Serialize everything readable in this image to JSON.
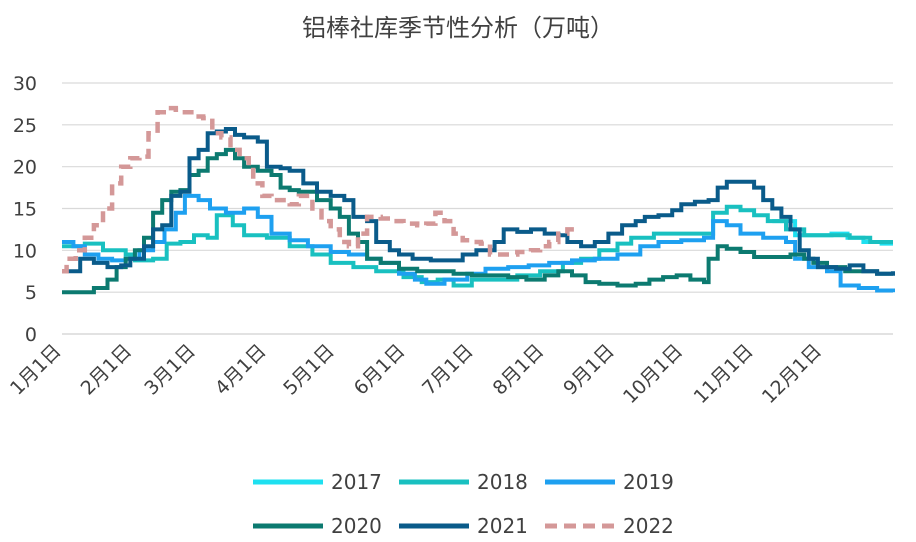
{
  "chart_data": {
    "type": "line",
    "title": "铝棒社库季节性分析（万吨）",
    "xlabel": "",
    "ylabel": "",
    "ylim": [
      0,
      30
    ],
    "yticks": [
      0,
      5,
      10,
      15,
      20,
      25,
      30
    ],
    "x_domain_days": [
      0,
      365
    ],
    "x_ticks": [
      {
        "label": "1月1日",
        "day": 0
      },
      {
        "label": "2月1日",
        "day": 31
      },
      {
        "label": "3月1日",
        "day": 59
      },
      {
        "label": "4月1日",
        "day": 90
      },
      {
        "label": "5月1日",
        "day": 120
      },
      {
        "label": "6月1日",
        "day": 151
      },
      {
        "label": "7月1日",
        "day": 181
      },
      {
        "label": "8月1日",
        "day": 212
      },
      {
        "label": "9月1日",
        "day": 243
      },
      {
        "label": "10月1日",
        "day": 273
      },
      {
        "label": "11月1日",
        "day": 304
      },
      {
        "label": "12月1日",
        "day": 334
      }
    ],
    "grid": "horizontal",
    "legend_position": "bottom",
    "series": [
      {
        "name": "2017",
        "color": "#1ee0f0",
        "dash": false,
        "points": [
          [
            312,
            13.5
          ],
          [
            318,
            13.5
          ],
          [
            322,
            11.8
          ],
          [
            330,
            11.8
          ],
          [
            338,
            12.0
          ],
          [
            345,
            11.5
          ],
          [
            352,
            11.0
          ],
          [
            360,
            10.8
          ],
          [
            365,
            10.8
          ]
        ]
      },
      {
        "name": "2018",
        "color": "#19c0c0",
        "dash": false,
        "points": [
          [
            0,
            10.5
          ],
          [
            10,
            10.8
          ],
          [
            18,
            10.0
          ],
          [
            28,
            9.5
          ],
          [
            32,
            8.8
          ],
          [
            40,
            9.0
          ],
          [
            46,
            10.8
          ],
          [
            52,
            11.0
          ],
          [
            58,
            11.8
          ],
          [
            64,
            11.5
          ],
          [
            68,
            14.2
          ],
          [
            75,
            13.0
          ],
          [
            80,
            11.8
          ],
          [
            90,
            11.5
          ],
          [
            100,
            10.5
          ],
          [
            110,
            9.5
          ],
          [
            118,
            8.5
          ],
          [
            128,
            8.0
          ],
          [
            138,
            7.5
          ],
          [
            150,
            6.8
          ],
          [
            158,
            6.2
          ],
          [
            165,
            6.5
          ],
          [
            172,
            5.8
          ],
          [
            180,
            6.5
          ],
          [
            190,
            6.5
          ],
          [
            200,
            7.0
          ],
          [
            210,
            7.5
          ],
          [
            220,
            8.5
          ],
          [
            228,
            9.0
          ],
          [
            236,
            10.0
          ],
          [
            244,
            10.8
          ],
          [
            250,
            11.5
          ],
          [
            260,
            12.0
          ],
          [
            270,
            12.0
          ],
          [
            280,
            12.0
          ],
          [
            286,
            14.5
          ],
          [
            292,
            15.2
          ],
          [
            298,
            14.8
          ],
          [
            304,
            14.2
          ],
          [
            310,
            13.5
          ],
          [
            318,
            12.5
          ],
          [
            326,
            11.8
          ],
          [
            336,
            11.8
          ],
          [
            346,
            11.5
          ],
          [
            355,
            11.0
          ],
          [
            365,
            11.0
          ]
        ]
      },
      {
        "name": "2019",
        "color": "#1ea0f0",
        "dash": false,
        "points": [
          [
            0,
            11.0
          ],
          [
            5,
            10.5
          ],
          [
            10,
            9.5
          ],
          [
            16,
            9.0
          ],
          [
            22,
            8.8
          ],
          [
            28,
            9.0
          ],
          [
            34,
            10.0
          ],
          [
            40,
            11.0
          ],
          [
            45,
            12.5
          ],
          [
            50,
            14.5
          ],
          [
            54,
            16.5
          ],
          [
            60,
            16.0
          ],
          [
            65,
            15.0
          ],
          [
            72,
            14.5
          ],
          [
            80,
            15.0
          ],
          [
            86,
            14.0
          ],
          [
            92,
            12.0
          ],
          [
            100,
            11.2
          ],
          [
            108,
            10.5
          ],
          [
            118,
            9.8
          ],
          [
            126,
            9.5
          ],
          [
            134,
            9.0
          ],
          [
            140,
            8.5
          ],
          [
            148,
            7.2
          ],
          [
            155,
            6.5
          ],
          [
            160,
            6.0
          ],
          [
            168,
            6.5
          ],
          [
            178,
            7.2
          ],
          [
            186,
            7.8
          ],
          [
            196,
            8.0
          ],
          [
            205,
            8.2
          ],
          [
            214,
            8.5
          ],
          [
            224,
            8.8
          ],
          [
            234,
            9.0
          ],
          [
            244,
            9.5
          ],
          [
            254,
            10.5
          ],
          [
            262,
            11.0
          ],
          [
            272,
            11.2
          ],
          [
            282,
            11.5
          ],
          [
            286,
            13.5
          ],
          [
            292,
            13.0
          ],
          [
            298,
            12.0
          ],
          [
            308,
            11.5
          ],
          [
            318,
            11.0
          ],
          [
            322,
            9.0
          ],
          [
            328,
            8.0
          ],
          [
            336,
            7.5
          ],
          [
            342,
            5.8
          ],
          [
            350,
            5.5
          ],
          [
            358,
            5.2
          ],
          [
            365,
            5.0
          ]
        ]
      },
      {
        "name": "2020",
        "color": "#0c7a70",
        "dash": false,
        "points": [
          [
            0,
            5.0
          ],
          [
            8,
            5.0
          ],
          [
            14,
            5.5
          ],
          [
            20,
            6.5
          ],
          [
            24,
            8.0
          ],
          [
            28,
            9.0
          ],
          [
            32,
            10.0
          ],
          [
            36,
            11.5
          ],
          [
            40,
            14.5
          ],
          [
            44,
            16.0
          ],
          [
            48,
            17.0
          ],
          [
            52,
            17.2
          ],
          [
            56,
            19.0
          ],
          [
            60,
            19.5
          ],
          [
            64,
            21.0
          ],
          [
            68,
            21.5
          ],
          [
            72,
            22.0
          ],
          [
            76,
            21.0
          ],
          [
            80,
            20.0
          ],
          [
            86,
            19.5
          ],
          [
            92,
            19.0
          ],
          [
            96,
            17.5
          ],
          [
            100,
            17.2
          ],
          [
            104,
            17.0
          ],
          [
            112,
            16.0
          ],
          [
            118,
            15.0
          ],
          [
            122,
            14.0
          ],
          [
            126,
            12.0
          ],
          [
            130,
            11.0
          ],
          [
            134,
            9.0
          ],
          [
            140,
            8.5
          ],
          [
            148,
            7.8
          ],
          [
            156,
            7.5
          ],
          [
            164,
            7.5
          ],
          [
            172,
            7.2
          ],
          [
            180,
            7.0
          ],
          [
            188,
            7.0
          ],
          [
            196,
            6.8
          ],
          [
            204,
            6.5
          ],
          [
            212,
            7.0
          ],
          [
            218,
            7.5
          ],
          [
            224,
            7.0
          ],
          [
            230,
            6.2
          ],
          [
            236,
            6.0
          ],
          [
            244,
            5.8
          ],
          [
            252,
            6.0
          ],
          [
            258,
            6.5
          ],
          [
            264,
            6.8
          ],
          [
            270,
            7.0
          ],
          [
            276,
            6.5
          ],
          [
            282,
            6.2
          ],
          [
            284,
            9.0
          ],
          [
            288,
            10.5
          ],
          [
            292,
            10.2
          ],
          [
            298,
            9.8
          ],
          [
            304,
            9.2
          ],
          [
            312,
            9.2
          ],
          [
            320,
            9.5
          ],
          [
            326,
            9.0
          ],
          [
            330,
            8.5
          ],
          [
            336,
            8.0
          ],
          [
            344,
            7.5
          ],
          [
            352,
            7.5
          ],
          [
            358,
            7.2
          ],
          [
            365,
            7.0
          ]
        ]
      },
      {
        "name": "2021",
        "color": "#0a5b8a",
        "dash": false,
        "points": [
          [
            0,
            7.5
          ],
          [
            6,
            7.5
          ],
          [
            8,
            9.0
          ],
          [
            14,
            8.5
          ],
          [
            20,
            8.0
          ],
          [
            26,
            8.2
          ],
          [
            30,
            9.0
          ],
          [
            36,
            10.5
          ],
          [
            40,
            12.5
          ],
          [
            44,
            13.0
          ],
          [
            48,
            16.5
          ],
          [
            52,
            17.0
          ],
          [
            56,
            21.0
          ],
          [
            60,
            22.0
          ],
          [
            64,
            24.0
          ],
          [
            68,
            24.2
          ],
          [
            72,
            24.5
          ],
          [
            76,
            23.8
          ],
          [
            80,
            23.5
          ],
          [
            86,
            23.0
          ],
          [
            90,
            20.0
          ],
          [
            96,
            19.8
          ],
          [
            100,
            19.5
          ],
          [
            106,
            18.0
          ],
          [
            112,
            17.0
          ],
          [
            118,
            16.5
          ],
          [
            124,
            16.0
          ],
          [
            128,
            14.0
          ],
          [
            134,
            13.5
          ],
          [
            138,
            11.0
          ],
          [
            144,
            10.0
          ],
          [
            148,
            9.5
          ],
          [
            154,
            9.0
          ],
          [
            162,
            8.8
          ],
          [
            170,
            8.8
          ],
          [
            176,
            9.5
          ],
          [
            182,
            10.0
          ],
          [
            190,
            11.0
          ],
          [
            194,
            12.5
          ],
          [
            200,
            12.2
          ],
          [
            206,
            12.5
          ],
          [
            212,
            12.0
          ],
          [
            218,
            11.8
          ],
          [
            222,
            11.0
          ],
          [
            228,
            10.5
          ],
          [
            234,
            11.0
          ],
          [
            240,
            12.0
          ],
          [
            246,
            13.0
          ],
          [
            252,
            13.5
          ],
          [
            256,
            14.0
          ],
          [
            262,
            14.2
          ],
          [
            268,
            14.8
          ],
          [
            272,
            15.5
          ],
          [
            278,
            15.8
          ],
          [
            284,
            16.0
          ],
          [
            288,
            17.5
          ],
          [
            292,
            18.2
          ],
          [
            298,
            18.2
          ],
          [
            304,
            17.5
          ],
          [
            308,
            16.0
          ],
          [
            312,
            15.0
          ],
          [
            316,
            14.0
          ],
          [
            320,
            12.5
          ],
          [
            324,
            10.0
          ],
          [
            328,
            9.0
          ],
          [
            332,
            8.0
          ],
          [
            340,
            7.8
          ],
          [
            346,
            8.2
          ],
          [
            352,
            7.5
          ],
          [
            358,
            7.2
          ],
          [
            365,
            7.5
          ]
        ]
      },
      {
        "name": "2022",
        "color": "#d49898",
        "dash": true,
        "points": [
          [
            0,
            7.5
          ],
          [
            2,
            9.0
          ],
          [
            6,
            10.0
          ],
          [
            10,
            11.5
          ],
          [
            14,
            13.0
          ],
          [
            18,
            15.0
          ],
          [
            22,
            18.0
          ],
          [
            26,
            20.0
          ],
          [
            30,
            21.0
          ],
          [
            34,
            21.2
          ],
          [
            38,
            24.0
          ],
          [
            42,
            26.5
          ],
          [
            46,
            27.0
          ],
          [
            50,
            26.8
          ],
          [
            54,
            26.5
          ],
          [
            58,
            26.0
          ],
          [
            62,
            25.8
          ],
          [
            66,
            24.0
          ],
          [
            70,
            23.5
          ],
          [
            74,
            22.0
          ],
          [
            78,
            21.0
          ],
          [
            82,
            20.0
          ],
          [
            84,
            18.0
          ],
          [
            88,
            16.5
          ],
          [
            92,
            16.0
          ],
          [
            96,
            16.0
          ],
          [
            100,
            15.5
          ],
          [
            104,
            16.5
          ],
          [
            110,
            15.0
          ],
          [
            114,
            13.5
          ],
          [
            118,
            12.5
          ],
          [
            122,
            11.0
          ],
          [
            126,
            10.5
          ],
          [
            130,
            12.0
          ],
          [
            134,
            14.0
          ],
          [
            140,
            13.8
          ],
          [
            146,
            13.5
          ],
          [
            150,
            13.2
          ],
          [
            156,
            13.0
          ],
          [
            160,
            13.2
          ],
          [
            164,
            14.5
          ],
          [
            168,
            13.5
          ],
          [
            172,
            12.0
          ],
          [
            176,
            11.2
          ],
          [
            180,
            11.0
          ],
          [
            184,
            10.8
          ],
          [
            188,
            9.5
          ],
          [
            194,
            9.5
          ],
          [
            200,
            9.8
          ],
          [
            206,
            10.0
          ],
          [
            210,
            10.5
          ],
          [
            214,
            11.0
          ],
          [
            218,
            12.0
          ],
          [
            222,
            12.5
          ],
          [
            226,
            12.0
          ]
        ]
      }
    ]
  }
}
